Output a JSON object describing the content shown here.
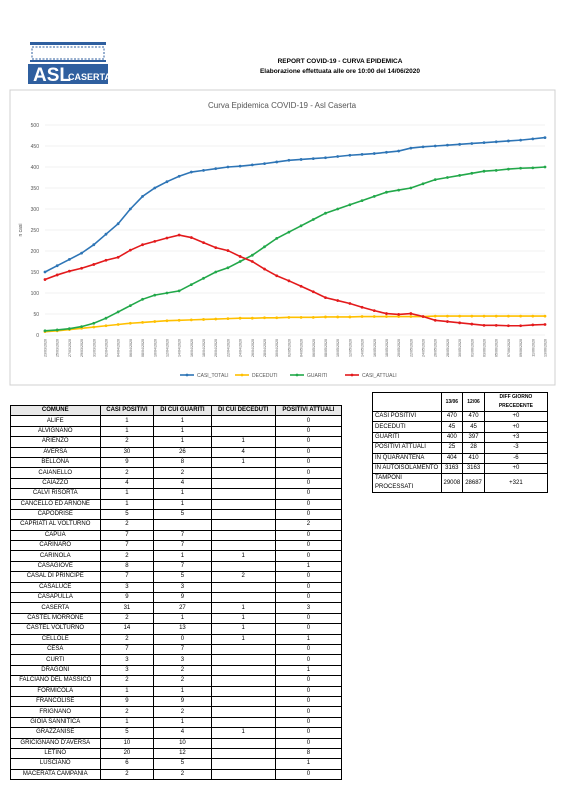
{
  "header": {
    "logo_main": "ASL",
    "logo_sub": "CASERTA",
    "title": "REPORT COVID-19 - CURVA EPIDEMICA",
    "subtitle": "Elaborazione effettuata alle ore 10:00 del 14/06/2020"
  },
  "chart_data": {
    "type": "line",
    "title": "Curva Epidemica COVID-19 - Asl Caserta",
    "ylabel": "n casi",
    "ylim": [
      0,
      500
    ],
    "yticks": [
      0,
      50,
      100,
      150,
      200,
      250,
      300,
      350,
      400,
      450,
      500
    ],
    "grid": true,
    "legend": "bottom",
    "categories": [
      "23/03/2020",
      "25/03/2020",
      "27/03/2020",
      "29/03/2020",
      "31/03/2020",
      "02/04/2020",
      "04/04/2020",
      "06/04/2020",
      "08/04/2020",
      "10/04/2020",
      "12/04/2020",
      "14/04/2020",
      "16/04/2020",
      "18/04/2020",
      "20/04/2020",
      "22/04/2020",
      "24/04/2020",
      "26/04/2020",
      "28/04/2020",
      "30/04/2020",
      "02/05/2020",
      "04/05/2020",
      "06/05/2020",
      "08/05/2020",
      "10/05/2020",
      "12/05/2020",
      "14/05/2020",
      "16/05/2020",
      "18/05/2020",
      "20/05/2020",
      "22/05/2020",
      "24/05/2020",
      "26/05/2020",
      "28/05/2020",
      "30/05/2020",
      "01/06/2020",
      "03/06/2020",
      "05/06/2020",
      "07/06/2020",
      "09/06/2020",
      "11/06/2020",
      "13/06/2020"
    ],
    "series": [
      {
        "name": "CASI_TOTALI",
        "color": "#2e75b6",
        "values": [
          150,
          165,
          180,
          195,
          215,
          240,
          265,
          300,
          330,
          350,
          365,
          378,
          388,
          392,
          396,
          400,
          402,
          405,
          408,
          412,
          416,
          418,
          420,
          422,
          425,
          428,
          430,
          432,
          435,
          438,
          445,
          448,
          450,
          452,
          454,
          456,
          458,
          460,
          462,
          464,
          467,
          470
        ]
      },
      {
        "name": "DECEDUTI",
        "color": "#ffc000",
        "values": [
          8,
          10,
          13,
          16,
          19,
          22,
          25,
          28,
          30,
          32,
          34,
          35,
          36,
          37,
          38,
          39,
          40,
          40,
          41,
          41,
          42,
          42,
          42,
          43,
          43,
          43,
          44,
          44,
          44,
          44,
          44,
          44,
          45,
          45,
          45,
          45,
          45,
          45,
          45,
          45,
          45,
          45
        ]
      },
      {
        "name": "GUARITI",
        "color": "#22a84a",
        "values": [
          10,
          12,
          15,
          20,
          28,
          40,
          55,
          70,
          85,
          95,
          100,
          105,
          120,
          135,
          150,
          160,
          175,
          190,
          210,
          230,
          245,
          260,
          275,
          290,
          300,
          310,
          320,
          330,
          340,
          345,
          350,
          360,
          370,
          375,
          380,
          385,
          390,
          392,
          395,
          397,
          398,
          400
        ]
      },
      {
        "name": "CASI_ATTUALI",
        "color": "#e31a1c",
        "values": [
          132,
          143,
          152,
          159,
          168,
          178,
          185,
          202,
          215,
          223,
          231,
          238,
          232,
          220,
          208,
          201,
          187,
          175,
          157,
          141,
          129,
          116,
          103,
          89,
          82,
          75,
          66,
          58,
          51,
          49,
          51,
          44,
          35,
          32,
          29,
          26,
          23,
          23,
          22,
          22,
          24,
          25
        ]
      }
    ]
  },
  "summary": {
    "header": [
      "13/06",
      "12/06",
      "DIFF GIORNO PRECEDENTE"
    ],
    "rows": [
      [
        "CASI POSITIVI",
        470,
        470,
        "+0"
      ],
      [
        "DECEDUTI",
        45,
        45,
        "+0"
      ],
      [
        "GUARITI",
        400,
        397,
        "+3"
      ],
      [
        "POSITIVI ATTUALI",
        25,
        28,
        "-3"
      ],
      [
        "IN QUARANTENA",
        404,
        410,
        "-6"
      ],
      [
        "IN AUTOISOLAMENTO",
        3163,
        3163,
        "+0"
      ],
      [
        "TAMPONI PROCESSATI",
        29008,
        28687,
        "+321"
      ]
    ]
  },
  "table": {
    "header": [
      "COMUNE",
      "CASI POSITIVI",
      "DI CUI GUARITI",
      "DI CUI DECEDUTI",
      "POSITIVI ATTUALI"
    ],
    "rows": [
      [
        "ALIFE",
        1,
        1,
        null,
        0
      ],
      [
        "ALVIGNANO",
        1,
        1,
        null,
        0
      ],
      [
        "ARIENZO",
        2,
        1,
        1,
        0
      ],
      [
        "AVERSA",
        30,
        26,
        4,
        0
      ],
      [
        "BELLONA",
        9,
        8,
        1,
        0
      ],
      [
        "CAIANELLO",
        2,
        2,
        null,
        0
      ],
      [
        "CAIAZZO",
        4,
        4,
        null,
        0
      ],
      [
        "CALVI RISORTA",
        1,
        1,
        null,
        0
      ],
      [
        "CANCELLO ED ARNONE",
        1,
        1,
        null,
        0
      ],
      [
        "CAPODRISE",
        5,
        5,
        null,
        0
      ],
      [
        "CAPRIATI AL VOLTURNO",
        2,
        null,
        null,
        2
      ],
      [
        "CAPUA",
        7,
        7,
        null,
        0
      ],
      [
        "CARINARO",
        7,
        7,
        null,
        0
      ],
      [
        "CARINOLA",
        2,
        1,
        1,
        0
      ],
      [
        "CASAGIOVE",
        8,
        7,
        null,
        1
      ],
      [
        "CASAL DI PRINCIPE",
        7,
        5,
        2,
        0
      ],
      [
        "CASALUCE",
        3,
        3,
        null,
        0
      ],
      [
        "CASAPULLA",
        9,
        9,
        null,
        0
      ],
      [
        "CASERTA",
        31,
        27,
        1,
        3
      ],
      [
        "CASTEL MORRONE",
        2,
        1,
        1,
        0
      ],
      [
        "CASTEL VOLTURNO",
        14,
        13,
        1,
        0
      ],
      [
        "CELLOLE",
        2,
        0,
        1,
        1
      ],
      [
        "CESA",
        7,
        7,
        null,
        0
      ],
      [
        "CURTI",
        3,
        3,
        null,
        0
      ],
      [
        "DRAGONI",
        3,
        2,
        null,
        1
      ],
      [
        "FALCIANO DEL MASSICO",
        2,
        2,
        null,
        0
      ],
      [
        "FORMICOLA",
        1,
        1,
        null,
        0
      ],
      [
        "FRANCOLISE",
        9,
        9,
        null,
        0
      ],
      [
        "FRIGNANO",
        2,
        2,
        null,
        0
      ],
      [
        "GIOIA SANNITICA",
        1,
        1,
        null,
        0
      ],
      [
        "GRAZZANISE",
        5,
        4,
        1,
        0
      ],
      [
        "GRICIGNANO D'AVERSA",
        10,
        10,
        null,
        0
      ],
      [
        "LETINO",
        20,
        12,
        null,
        8
      ],
      [
        "LUSCIANO",
        6,
        5,
        null,
        1
      ],
      [
        "MACERATA CAMPANIA",
        2,
        2,
        null,
        0
      ]
    ]
  }
}
